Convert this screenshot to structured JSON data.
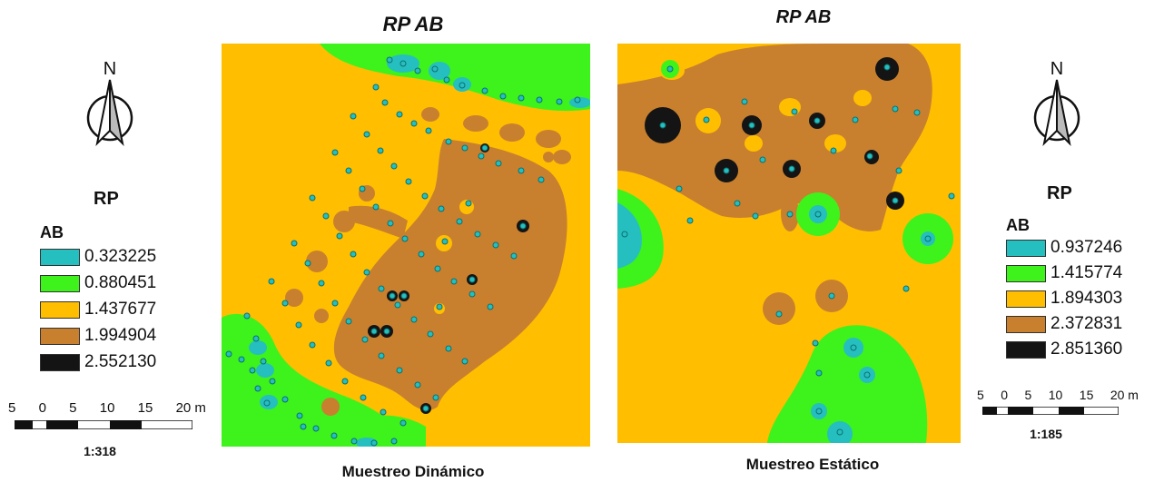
{
  "maps": [
    {
      "id": "dinamico",
      "title": "RP AB",
      "caption": "Muestreo Dinámico",
      "legend_title": "RP",
      "legend_subtitle": "AB",
      "legend": [
        {
          "label": "0.323225",
          "color": "#25bfbf"
        },
        {
          "label": "0.880451",
          "color": "#3ef21c"
        },
        {
          "label": "1.437677",
          "color": "#ffbf00"
        },
        {
          "label": "1.994904",
          "color": "#c8802e"
        },
        {
          "label": "2.552130",
          "color": "#141414"
        }
      ],
      "scale_ticks": [
        "5",
        "0",
        "5",
        "10",
        "15",
        "20 m"
      ],
      "scale_ratio": "1:318"
    },
    {
      "id": "estatico",
      "title": "RP AB",
      "caption": "Muestreo Estático",
      "legend_title": "RP",
      "legend_subtitle": "AB",
      "legend": [
        {
          "label": "0.937246",
          "color": "#25bfbf"
        },
        {
          "label": "1.415774",
          "color": "#3ef21c"
        },
        {
          "label": "1.894303",
          "color": "#ffbf00"
        },
        {
          "label": "2.372831",
          "color": "#c8802e"
        },
        {
          "label": "2.851360",
          "color": "#141414"
        }
      ],
      "scale_ticks": [
        "5",
        "0",
        "5",
        "10",
        "15",
        "20 m"
      ],
      "scale_ratio": "1:185"
    }
  ],
  "north_label": "N",
  "icons": [
    "north-arrow-icon",
    "north-arrow-icon"
  ]
}
